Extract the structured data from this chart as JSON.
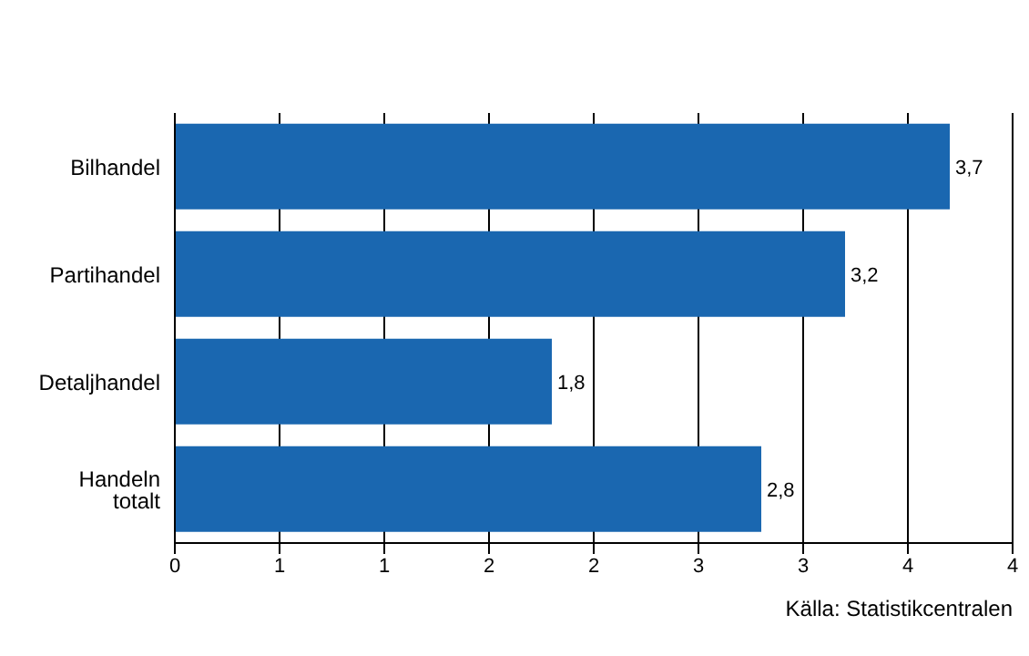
{
  "chart_data": {
    "type": "bar",
    "orientation": "horizontal",
    "categories": [
      "Bilhandel",
      "Partihandel",
      "Detaljhandel",
      "Handeln totalt"
    ],
    "values": [
      3.7,
      3.2,
      1.8,
      2.8
    ],
    "value_labels": [
      "3,7",
      "3,2",
      "1,8",
      "2,8"
    ],
    "color": "#1a67b0",
    "xlim": [
      0,
      4
    ],
    "xticks": [
      0,
      {
        "value": 0.5,
        "label": "1"
      },
      1,
      {
        "value": 1.5,
        "label": "2"
      },
      2,
      {
        "value": 2.5,
        "label": "3"
      },
      3,
      {
        "value": 3.5,
        "label": "4"
      },
      4
    ],
    "grid": "x",
    "annotations": [
      "Källa:  Statistikcentralen"
    ]
  }
}
